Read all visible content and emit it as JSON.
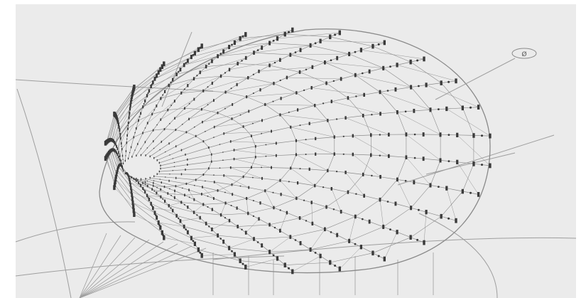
{
  "figure": {
    "background": "#ebebeb",
    "frame_color": "#ffffff",
    "grid_line_color": "#9e9e9e",
    "mesh_line_color": "#8a8a8a",
    "node_color": "#3a3a3a"
  },
  "axis_tag": {
    "label": "Ø",
    "icon": "axis-tag-icon"
  }
}
